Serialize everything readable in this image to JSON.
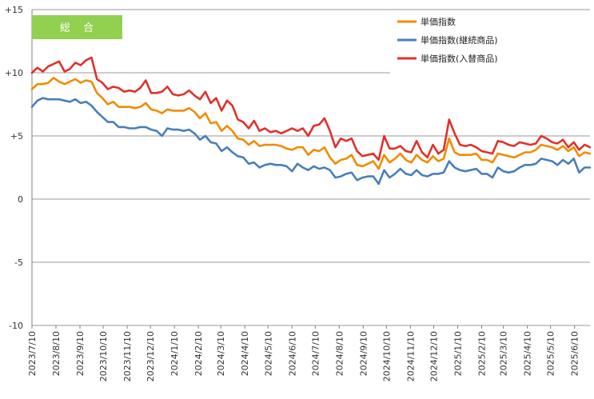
{
  "chart_data": {
    "type": "line",
    "badge": "総 合",
    "badge_color": "#92D050",
    "ylim": [
      -10,
      15
    ],
    "y_ticks": [
      15,
      10,
      5,
      0,
      -5,
      -10
    ],
    "y_tick_labels": [
      "+15",
      "+10",
      "+5",
      "0",
      "-5",
      "-10"
    ],
    "grid": "horizontal",
    "legend_position": "top-right",
    "x": [
      "2023/7/10",
      "2023/7/17",
      "2023/7/24",
      "2023/7/31",
      "2023/8/7",
      "2023/8/14",
      "2023/8/21",
      "2023/8/28",
      "2023/9/4",
      "2023/9/11",
      "2023/9/18",
      "2023/9/25",
      "2023/10/2",
      "2023/10/9",
      "2023/10/16",
      "2023/10/23",
      "2023/10/30",
      "2023/11/6",
      "2023/11/13",
      "2023/11/20",
      "2023/11/27",
      "2023/12/4",
      "2023/12/11",
      "2023/12/18",
      "2023/12/25",
      "2024/1/1",
      "2024/1/8",
      "2024/1/15",
      "2024/1/22",
      "2024/1/29",
      "2024/2/5",
      "2024/2/12",
      "2024/2/19",
      "2024/2/26",
      "2024/3/4",
      "2024/3/11",
      "2024/3/18",
      "2024/3/25",
      "2024/4/1",
      "2024/4/8",
      "2024/4/15",
      "2024/4/22",
      "2024/4/29",
      "2024/5/6",
      "2024/5/13",
      "2024/5/20",
      "2024/5/27",
      "2024/6/3",
      "2024/6/10",
      "2024/6/17",
      "2024/6/24",
      "2024/7/1",
      "2024/7/8",
      "2024/7/15",
      "2024/7/22",
      "2024/7/29",
      "2024/8/5",
      "2024/8/12",
      "2024/8/19",
      "2024/8/26",
      "2024/9/2",
      "2024/9/9",
      "2024/9/16",
      "2024/9/23",
      "2024/9/30",
      "2024/10/7",
      "2024/10/14",
      "2024/10/21",
      "2024/10/28",
      "2024/11/4",
      "2024/11/11",
      "2024/11/18",
      "2024/11/25",
      "2024/12/2",
      "2024/12/9",
      "2024/12/16",
      "2024/12/23",
      "2024/12/30",
      "2025/1/6",
      "2025/1/13",
      "2025/1/20",
      "2025/1/27",
      "2025/2/3",
      "2025/2/10",
      "2025/2/17",
      "2025/2/24",
      "2025/3/3",
      "2025/3/10",
      "2025/3/17",
      "2025/3/24",
      "2025/3/31",
      "2025/4/7",
      "2025/4/14",
      "2025/4/21",
      "2025/4/28",
      "2025/5/5",
      "2025/5/12",
      "2025/5/19",
      "2025/5/26",
      "2025/6/2",
      "2025/6/9",
      "2025/6/16",
      "2025/6/23",
      "2025/6/30"
    ],
    "x_tick_labels": [
      "2023/7/10",
      "2023/8/10",
      "2023/9/10",
      "2023/10/10",
      "2023/11/10",
      "2023/12/10",
      "2024/1/10",
      "2024/2/10",
      "2024/3/10",
      "2024/4/10",
      "2024/5/10",
      "2024/6/10",
      "2024/7/10",
      "2024/8/10",
      "2024/9/10",
      "2024/10/10",
      "2024/11/10",
      "2024/12/10",
      "2025/1/10",
      "2025/2/10",
      "2025/3/10",
      "2025/4/10",
      "2025/5/10",
      "2025/6/10"
    ],
    "series": [
      {
        "name": "単価指数",
        "color": "#F08C00",
        "values": [
          8.7,
          9.1,
          9.1,
          9.2,
          9.6,
          9.3,
          9.1,
          9.3,
          9.5,
          9.2,
          9.4,
          9.3,
          8.4,
          8.0,
          7.5,
          7.7,
          7.3,
          7.3,
          7.3,
          7.2,
          7.3,
          7.6,
          7.1,
          7.0,
          6.8,
          7.1,
          7.0,
          7.0,
          7.0,
          7.2,
          6.9,
          6.4,
          6.8,
          6.0,
          6.1,
          5.4,
          5.8,
          5.4,
          4.8,
          4.7,
          4.3,
          4.6,
          4.2,
          4.3,
          4.3,
          4.3,
          4.2,
          4.0,
          3.9,
          4.1,
          4.1,
          3.5,
          3.9,
          3.8,
          4.1,
          3.3,
          2.8,
          3.1,
          3.2,
          3.5,
          2.7,
          2.6,
          2.8,
          3.0,
          2.4,
          3.5,
          2.9,
          3.2,
          3.6,
          3.1,
          2.9,
          3.5,
          3.1,
          2.9,
          3.4,
          3.0,
          3.2,
          4.8,
          3.7,
          3.5,
          3.5,
          3.5,
          3.6,
          3.1,
          3.1,
          2.9,
          3.6,
          3.5,
          3.4,
          3.3,
          3.5,
          3.7,
          3.7,
          3.9,
          4.3,
          4.2,
          4.1,
          3.9,
          4.2,
          3.8,
          4.1,
          3.4,
          3.7,
          3.6
        ]
      },
      {
        "name": "単価指数(継続商品)",
        "color": "#4A7EBB",
        "values": [
          7.3,
          7.8,
          8.0,
          7.9,
          7.9,
          7.9,
          7.8,
          7.7,
          7.9,
          7.6,
          7.7,
          7.4,
          6.9,
          6.5,
          6.1,
          6.1,
          5.7,
          5.7,
          5.6,
          5.6,
          5.7,
          5.7,
          5.5,
          5.4,
          5.0,
          5.6,
          5.5,
          5.5,
          5.4,
          5.5,
          5.2,
          4.7,
          5.0,
          4.5,
          4.4,
          3.8,
          4.1,
          3.7,
          3.4,
          3.3,
          2.8,
          2.9,
          2.5,
          2.7,
          2.8,
          2.7,
          2.7,
          2.6,
          2.2,
          2.8,
          2.5,
          2.3,
          2.6,
          2.4,
          2.5,
          2.3,
          1.7,
          1.8,
          2.0,
          2.1,
          1.5,
          1.7,
          1.8,
          1.8,
          1.2,
          2.3,
          1.7,
          2.0,
          2.4,
          2.0,
          1.9,
          2.3,
          1.9,
          1.8,
          2.0,
          2.0,
          2.1,
          3.0,
          2.5,
          2.3,
          2.2,
          2.3,
          2.4,
          2.0,
          2.0,
          1.7,
          2.5,
          2.2,
          2.1,
          2.2,
          2.5,
          2.7,
          2.7,
          2.8,
          3.2,
          3.1,
          3.0,
          2.7,
          3.1,
          2.8,
          3.2,
          2.1,
          2.5,
          2.5
        ]
      },
      {
        "name": "単価指数(入替商品)",
        "color": "#E0312D",
        "values": [
          10.0,
          10.4,
          10.1,
          10.5,
          10.7,
          10.9,
          10.1,
          10.3,
          10.8,
          10.6,
          11.0,
          11.2,
          9.5,
          9.2,
          8.7,
          8.9,
          8.8,
          8.5,
          8.6,
          8.5,
          8.8,
          9.4,
          8.4,
          8.4,
          8.5,
          8.9,
          8.3,
          8.2,
          8.3,
          8.6,
          8.2,
          7.9,
          8.5,
          7.6,
          8.0,
          7.0,
          7.8,
          7.4,
          6.3,
          6.1,
          5.6,
          6.2,
          5.4,
          5.6,
          5.3,
          5.4,
          5.2,
          5.4,
          5.6,
          5.4,
          5.6,
          5.0,
          5.8,
          5.9,
          6.4,
          5.4,
          4.1,
          4.8,
          4.6,
          4.8,
          3.8,
          3.4,
          3.5,
          3.6,
          3.1,
          5.0,
          4.0,
          4.0,
          4.2,
          3.8,
          3.7,
          4.6,
          3.7,
          3.3,
          4.3,
          3.6,
          3.9,
          6.3,
          5.2,
          4.3,
          4.2,
          4.3,
          4.1,
          3.8,
          3.7,
          3.6,
          4.6,
          4.5,
          4.3,
          4.2,
          4.5,
          4.4,
          4.3,
          4.4,
          5.0,
          4.8,
          4.5,
          4.4,
          4.7,
          4.1,
          4.5,
          3.9,
          4.3,
          4.1
        ]
      }
    ]
  }
}
